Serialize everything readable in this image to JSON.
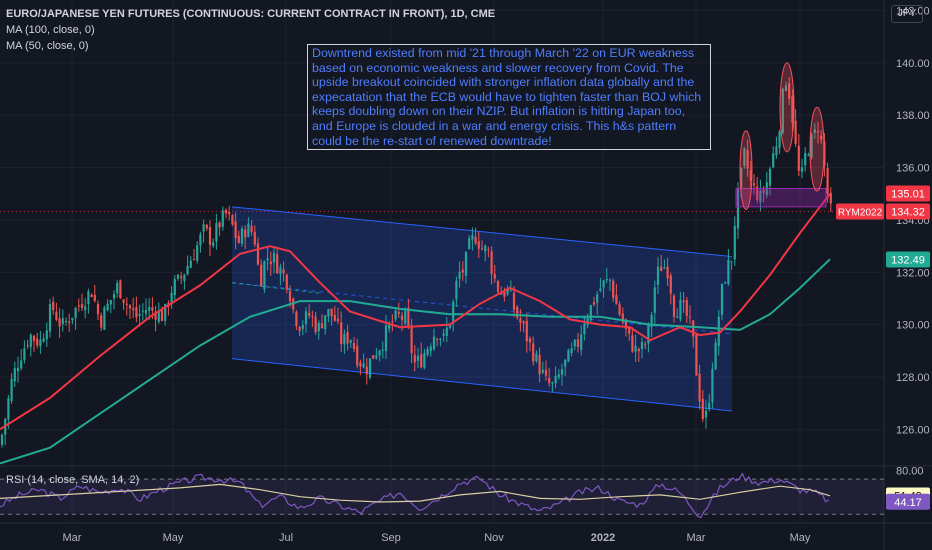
{
  "legend": {
    "title": "EURO/JAPANESE YEN FUTURES (CONTINUOUS: CURRENT CONTRACT IN FRONT), 1D, CME",
    "ma100": "MA (100, close, 0)",
    "ma50": "MA (50, close, 0)",
    "rsi": "RSI (14, close, SMA, 14, 2)"
  },
  "currency": "JPY",
  "annotation": "Downtrend existed from mid '21 through March '22 on EUR weakness based on economic weakness and slower recovery from Covid.  The upside breakout coincided with stronger inflation data globally and the expecatation that the ECB would have to tighten faster than BOJ which keeps doubling down on their NZIP.  But inflation is hitting Japan too, and Europe is clouded in a war and energy crisis.  This h&s pattern could be the re-start of renewed downtrade!",
  "chart_data": {
    "type": "candlestick",
    "symbol_badge": "RYM2022",
    "price_axis": {
      "ylim": [
        124.6,
        142.4
      ],
      "ticks": [
        "142.00",
        "140.00",
        "138.00",
        "136.00",
        "134.00",
        "132.00",
        "130.00",
        "128.00",
        "126.00"
      ]
    },
    "time_axis": {
      "ticks": [
        "Mar",
        "May",
        "Jul",
        "Sep",
        "Nov",
        "2022",
        "Mar",
        "May"
      ]
    },
    "price_labels": {
      "ma50": "135.01",
      "last": "134.32",
      "ma100": "132.49"
    },
    "colors": {
      "up": "#26a69a",
      "down": "#ef5350",
      "ma50": "#f23645",
      "ma100": "#22ab94",
      "channel": "#2962ff",
      "shoulders": "#f7525f",
      "neckline": "#9c27b0",
      "rsi": "#7e57c2",
      "rsi_ma": "#d9cfa3"
    },
    "close_path": [
      [
        0,
        125.4
      ],
      [
        6,
        126.6
      ],
      [
        12,
        127.9
      ],
      [
        20,
        128.8
      ],
      [
        30,
        129.6
      ],
      [
        40,
        129.3
      ],
      [
        52,
        130.7
      ],
      [
        62,
        129.9
      ],
      [
        72,
        130.4
      ],
      [
        82,
        130.9
      ],
      [
        92,
        131.3
      ],
      [
        100,
        130.1
      ],
      [
        110,
        130.9
      ],
      [
        118,
        131.5
      ],
      [
        128,
        130.7
      ],
      [
        136,
        130.3
      ],
      [
        146,
        130.6
      ],
      [
        156,
        130.5
      ],
      [
        164,
        130.3
      ],
      [
        172,
        131.4
      ],
      [
        180,
        131.7
      ],
      [
        188,
        132.3
      ],
      [
        196,
        132.9
      ],
      [
        204,
        133.6
      ],
      [
        212,
        133.2
      ],
      [
        220,
        133.9
      ],
      [
        226,
        134.2
      ],
      [
        232,
        133.8
      ],
      [
        238,
        133.1
      ],
      [
        246,
        133.7
      ],
      [
        254,
        133.5
      ],
      [
        260,
        131.6
      ],
      [
        266,
        132.6
      ],
      [
        274,
        132.5
      ],
      [
        282,
        132.0
      ],
      [
        288,
        131.6
      ],
      [
        294,
        130.4
      ],
      [
        300,
        130.0
      ],
      [
        310,
        130.4
      ],
      [
        318,
        129.8
      ],
      [
        326,
        130.5
      ],
      [
        334,
        130.3
      ],
      [
        342,
        129.3
      ],
      [
        350,
        129.6
      ],
      [
        358,
        128.7
      ],
      [
        366,
        128.3
      ],
      [
        374,
        128.9
      ],
      [
        382,
        129.3
      ],
      [
        390,
        130.0
      ],
      [
        398,
        130.3
      ],
      [
        406,
        130.2
      ],
      [
        414,
        128.5
      ],
      [
        420,
        128.6
      ],
      [
        428,
        129.2
      ],
      [
        436,
        129.8
      ],
      [
        444,
        129.4
      ],
      [
        452,
        130.5
      ],
      [
        458,
        131.9
      ],
      [
        464,
        132.1
      ],
      [
        470,
        133.1
      ],
      [
        476,
        133.4
      ],
      [
        482,
        132.9
      ],
      [
        488,
        132.8
      ],
      [
        494,
        131.8
      ],
      [
        500,
        131.2
      ],
      [
        508,
        131.3
      ],
      [
        516,
        130.4
      ],
      [
        524,
        129.8
      ],
      [
        530,
        129.2
      ],
      [
        538,
        128.5
      ],
      [
        546,
        127.8
      ],
      [
        554,
        127.6
      ],
      [
        562,
        128.3
      ],
      [
        570,
        128.8
      ],
      [
        578,
        129.3
      ],
      [
        584,
        130.2
      ],
      [
        590,
        130.6
      ],
      [
        596,
        131.1
      ],
      [
        602,
        131.5
      ],
      [
        610,
        131.7
      ],
      [
        616,
        130.8
      ],
      [
        622,
        130.2
      ],
      [
        628,
        129.5
      ],
      [
        636,
        129.0
      ],
      [
        644,
        129.1
      ],
      [
        650,
        130.0
      ],
      [
        656,
        131.8
      ],
      [
        662,
        132.3
      ],
      [
        668,
        132.1
      ],
      [
        674,
        130.6
      ],
      [
        680,
        130.7
      ],
      [
        686,
        130.4
      ],
      [
        692,
        129.7
      ],
      [
        698,
        127.7
      ],
      [
        704,
        126.2
      ],
      [
        708,
        126.8
      ],
      [
        712,
        128.5
      ],
      [
        716,
        129.1
      ],
      [
        720,
        130.9
      ],
      [
        726,
        132.0
      ],
      [
        732,
        132.6
      ],
      [
        736,
        134.5
      ],
      [
        740,
        135.3
      ],
      [
        744,
        136.5
      ],
      [
        748,
        135.9
      ],
      [
        752,
        135.2
      ],
      [
        756,
        135.1
      ],
      [
        760,
        134.8
      ],
      [
        766,
        135.3
      ],
      [
        772,
        136.3
      ],
      [
        778,
        137.2
      ],
      [
        782,
        138.5
      ],
      [
        786,
        139.4
      ],
      [
        790,
        138.7
      ],
      [
        794,
        137.4
      ],
      [
        798,
        135.8
      ],
      [
        802,
        135.7
      ],
      [
        806,
        136.6
      ],
      [
        810,
        136.9
      ],
      [
        814,
        137.2
      ],
      [
        818,
        137.6
      ],
      [
        822,
        136.8
      ],
      [
        826,
        135.5
      ],
      [
        830,
        134.3
      ]
    ],
    "ma100_path": [
      [
        0,
        124.7
      ],
      [
        50,
        125.3
      ],
      [
        100,
        126.6
      ],
      [
        150,
        127.9
      ],
      [
        200,
        129.2
      ],
      [
        250,
        130.3
      ],
      [
        300,
        130.9
      ],
      [
        350,
        130.9
      ],
      [
        400,
        130.6
      ],
      [
        450,
        130.4
      ],
      [
        500,
        130.4
      ],
      [
        550,
        130.3
      ],
      [
        600,
        130.3
      ],
      [
        650,
        130.0
      ],
      [
        700,
        129.9
      ],
      [
        740,
        129.8
      ],
      [
        770,
        130.4
      ],
      [
        800,
        131.4
      ],
      [
        830,
        132.5
      ]
    ],
    "ma50_path": [
      [
        0,
        126.0
      ],
      [
        50,
        127.2
      ],
      [
        100,
        128.8
      ],
      [
        150,
        130.3
      ],
      [
        200,
        131.5
      ],
      [
        240,
        132.7
      ],
      [
        270,
        133.0
      ],
      [
        290,
        132.8
      ],
      [
        320,
        131.6
      ],
      [
        350,
        130.5
      ],
      [
        400,
        129.9
      ],
      [
        450,
        130.0
      ],
      [
        480,
        130.8
      ],
      [
        510,
        131.4
      ],
      [
        540,
        130.9
      ],
      [
        570,
        130.2
      ],
      [
        600,
        130.0
      ],
      [
        630,
        129.9
      ],
      [
        650,
        129.4
      ],
      [
        680,
        129.9
      ],
      [
        700,
        129.6
      ],
      [
        720,
        129.7
      ],
      [
        740,
        130.5
      ],
      [
        770,
        131.9
      ],
      [
        800,
        133.5
      ],
      [
        830,
        135.0
      ]
    ],
    "channel": {
      "upper": [
        [
          232,
          134.5
        ],
        [
          732,
          132.6
        ]
      ],
      "lower": [
        [
          232,
          128.7
        ],
        [
          732,
          126.7
        ]
      ]
    },
    "neckline": [
      [
        736,
        134.9
      ],
      [
        826,
        134.9
      ]
    ],
    "shoulders": [
      [
        746,
        135.9,
        6,
        1.5
      ],
      [
        787,
        138.3,
        7,
        1.7
      ],
      [
        817,
        136.7,
        7,
        1.6
      ]
    ],
    "rsi": {
      "ylim": [
        20,
        85
      ],
      "tick_label": "80.00",
      "levels": [
        70,
        30
      ],
      "rsi_value": "44.17",
      "rsi_ma_value": "51.42",
      "rsi_path": [
        [
          0,
          40
        ],
        [
          20,
          52
        ],
        [
          40,
          58
        ],
        [
          60,
          48
        ],
        [
          80,
          62
        ],
        [
          100,
          55
        ],
        [
          120,
          60
        ],
        [
          140,
          47
        ],
        [
          160,
          58
        ],
        [
          180,
          66
        ],
        [
          200,
          72
        ],
        [
          220,
          70
        ],
        [
          240,
          66
        ],
        [
          260,
          40
        ],
        [
          280,
          50
        ],
        [
          300,
          37
        ],
        [
          320,
          48
        ],
        [
          340,
          40
        ],
        [
          360,
          32
        ],
        [
          380,
          45
        ],
        [
          400,
          55
        ],
        [
          420,
          37
        ],
        [
          440,
          50
        ],
        [
          460,
          66
        ],
        [
          480,
          71
        ],
        [
          500,
          52
        ],
        [
          520,
          42
        ],
        [
          540,
          33
        ],
        [
          560,
          42
        ],
        [
          580,
          55
        ],
        [
          600,
          60
        ],
        [
          620,
          45
        ],
        [
          640,
          41
        ],
        [
          660,
          65
        ],
        [
          680,
          55
        ],
        [
          700,
          28
        ],
        [
          720,
          60
        ],
        [
          740,
          74
        ],
        [
          760,
          66
        ],
        [
          780,
          70
        ],
        [
          800,
          58
        ],
        [
          815,
          55
        ],
        [
          830,
          44
        ]
      ],
      "rsi_ma_path": [
        [
          0,
          48
        ],
        [
          60,
          52
        ],
        [
          120,
          56
        ],
        [
          180,
          60
        ],
        [
          220,
          64
        ],
        [
          260,
          58
        ],
        [
          300,
          50
        ],
        [
          340,
          46
        ],
        [
          380,
          44
        ],
        [
          420,
          45
        ],
        [
          460,
          52
        ],
        [
          500,
          56
        ],
        [
          540,
          48
        ],
        [
          580,
          47
        ],
        [
          620,
          50
        ],
        [
          660,
          52
        ],
        [
          700,
          47
        ],
        [
          740,
          55
        ],
        [
          780,
          62
        ],
        [
          810,
          58
        ],
        [
          830,
          51
        ]
      ]
    }
  }
}
